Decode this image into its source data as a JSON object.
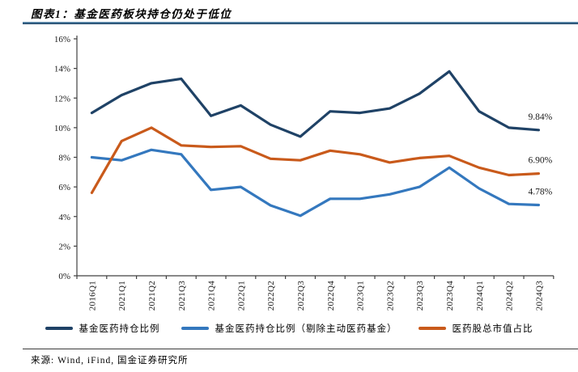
{
  "figure": {
    "title": "图表1：基金医药板块持仓仍处于低位",
    "source": "来源: Wind, iFind, 国金证券研究所"
  },
  "chart_data": {
    "type": "line",
    "title": "基金医药板块持仓仍处于低位",
    "categories": [
      "2016Q1",
      "2021Q1",
      "2021Q2",
      "2021Q3",
      "2021Q4",
      "2022Q1",
      "2022Q2",
      "2022Q3",
      "2022Q4",
      "2023Q1",
      "2023Q2",
      "2023Q3",
      "2023Q4",
      "2024Q1",
      "2024Q2",
      "2024Q3"
    ],
    "series": [
      {
        "name": "基金医药持仓比例",
        "color": "#1F4266",
        "values": [
          11.0,
          12.2,
          13.0,
          13.3,
          10.8,
          11.5,
          10.2,
          9.4,
          11.1,
          11.0,
          11.3,
          12.3,
          13.8,
          11.1,
          10.0,
          9.84
        ],
        "end_label": "9.84%"
      },
      {
        "name": "基金医药持仓比例（剔除主动医药基金）",
        "color": "#3478BE",
        "values": [
          8.0,
          7.8,
          8.5,
          8.2,
          5.8,
          6.0,
          4.75,
          4.05,
          5.2,
          5.2,
          5.5,
          6.0,
          7.3,
          5.9,
          4.85,
          4.78
        ],
        "end_label": "4.78%"
      },
      {
        "name": "医药股总市值占比",
        "color": "#C95A1B",
        "values": [
          5.6,
          9.1,
          10.0,
          8.8,
          8.7,
          8.75,
          7.9,
          7.8,
          8.45,
          8.2,
          7.65,
          7.95,
          8.1,
          7.3,
          6.8,
          6.9
        ],
        "end_label": "6.90%"
      }
    ],
    "xlabel": "",
    "ylabel": "",
    "ylim": [
      0,
      16
    ],
    "y_ticks": [
      "0%",
      "2%",
      "4%",
      "6%",
      "8%",
      "10%",
      "12%",
      "14%",
      "16%"
    ],
    "grid": false,
    "legend_position": "bottom"
  }
}
